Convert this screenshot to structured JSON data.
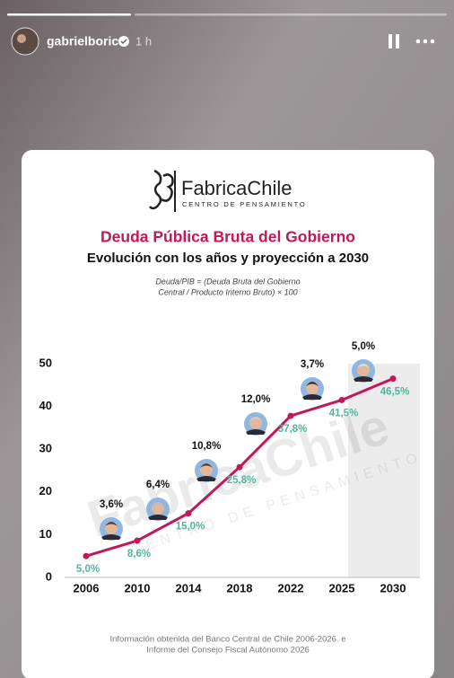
{
  "story": {
    "username": "gabrielboric",
    "time": "1 h"
  },
  "card": {
    "brand": "FabricaChile",
    "brand_tagline": "CENTRO DE PENSAMIENTO",
    "formula": [
      "Deuda/PIB = (Deuda Bruta del Gobierno",
      "Central / Producto Interno Bruto) × 100"
    ],
    "source": [
      "Información obtenida del Banco Central de Chile 2006-2026. e",
      "Informe del Consejo Fiscal Autónomo 2026"
    ],
    "watermark": [
      "FabricaChile",
      "CENTRO DE PENSAMIENTO"
    ]
  },
  "chart_data": {
    "type": "line",
    "title": "Deuda Pública Bruta del Gobierno",
    "subtitle": "Evolución con los años y proyección a 2030",
    "categories": [
      "2006",
      "2010",
      "2014",
      "2018",
      "2022",
      "2025",
      "2030"
    ],
    "values": [
      5.0,
      8.6,
      15.0,
      25.8,
      37.8,
      41.5,
      46.5
    ],
    "value_labels": [
      "5,0%",
      "8,6%",
      "15,0%",
      "25,8%",
      "37,8%",
      "41,5%",
      "46,5%"
    ],
    "color": "#c2185b",
    "label_color": "#4fb59f",
    "annotations": [
      "3,6%",
      "6,4%",
      "10,8%",
      "12,0%",
      "3,7%",
      "5,0%"
    ],
    "ylim": [
      0,
      50
    ],
    "yticks": [
      0,
      10,
      20,
      30,
      40,
      50
    ],
    "grid": false
  }
}
